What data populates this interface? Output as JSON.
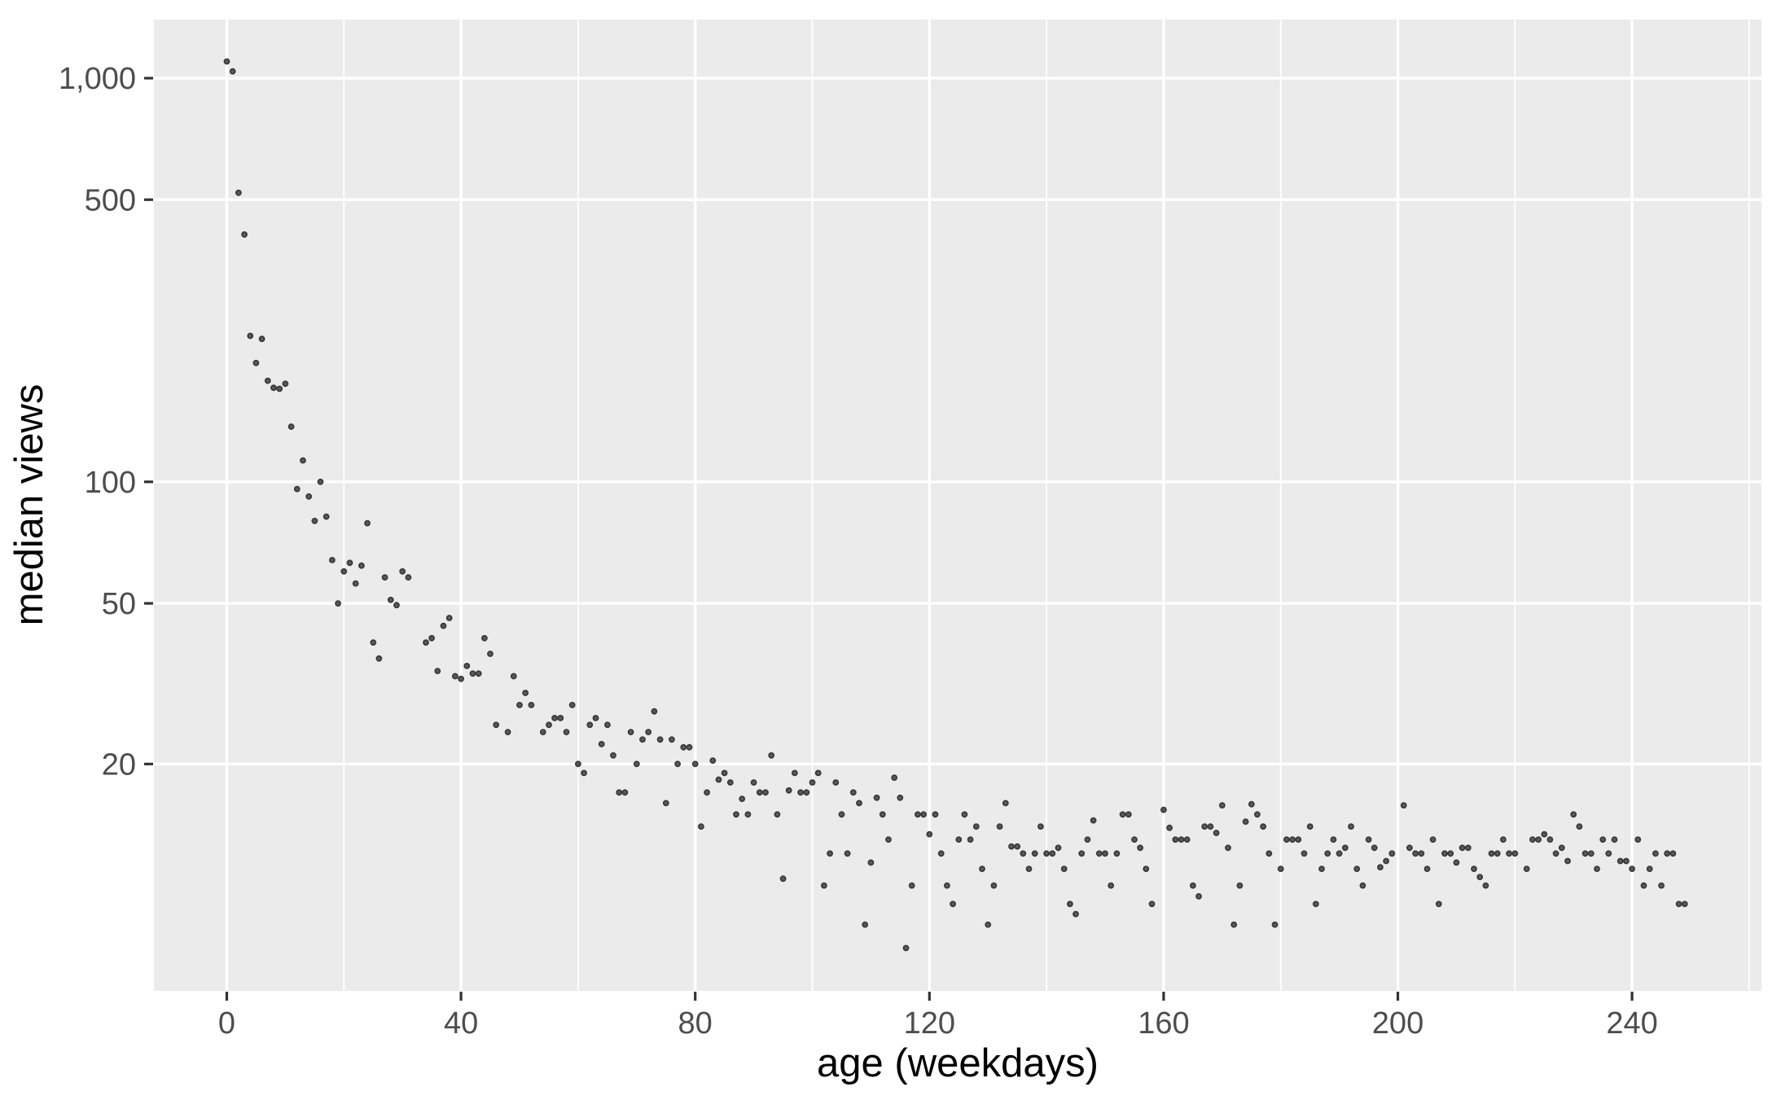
{
  "chart_data": {
    "type": "scatter",
    "title": "",
    "xlabel": "age (weekdays)",
    "ylabel": "median views",
    "x_axis": {
      "major_ticks": [
        0,
        40,
        80,
        120,
        160,
        200,
        240
      ],
      "major_tick_labels": [
        "0",
        "40",
        "80",
        "120",
        "160",
        "200",
        "240"
      ],
      "minor_ticks": [
        20,
        60,
        100,
        140,
        180,
        220,
        260
      ],
      "xlim": [
        -12.4,
        262
      ]
    },
    "y_axis": {
      "scale": "log10",
      "major_ticks": [
        20,
        50,
        100,
        500,
        1000
      ],
      "major_tick_labels": [
        "20",
        "50",
        "100",
        "500",
        "1,000"
      ],
      "ylim": [
        5.5,
        1400
      ]
    },
    "legend": "none",
    "grid": "major-and-minor-x, major-y, white on grey panel",
    "points": [
      [
        0,
        1100
      ],
      [
        1,
        1040
      ],
      [
        2,
        520
      ],
      [
        3,
        410
      ],
      [
        4,
        230
      ],
      [
        5,
        197
      ],
      [
        6,
        226
      ],
      [
        7,
        178
      ],
      [
        8,
        171
      ],
      [
        9,
        170
      ],
      [
        10,
        175
      ],
      [
        11,
        137
      ],
      [
        12,
        96
      ],
      [
        13,
        113
      ],
      [
        14,
        92
      ],
      [
        15,
        80
      ],
      [
        16,
        100
      ],
      [
        17,
        82
      ],
      [
        18,
        64
      ],
      [
        19,
        50
      ],
      [
        20,
        60
      ],
      [
        21,
        63
      ],
      [
        22,
        56
      ],
      [
        23,
        62
      ],
      [
        24,
        79
      ],
      [
        25,
        40
      ],
      [
        26,
        36.5
      ],
      [
        27,
        58
      ],
      [
        28,
        51
      ],
      [
        29,
        49.5
      ],
      [
        30,
        60
      ],
      [
        31,
        58
      ],
      [
        34,
        40
      ],
      [
        35,
        41
      ],
      [
        36,
        34
      ],
      [
        37,
        44
      ],
      [
        38,
        46
      ],
      [
        39,
        33
      ],
      [
        40,
        32.5
      ],
      [
        41,
        35
      ],
      [
        42,
        33.5
      ],
      [
        43,
        33.5
      ],
      [
        44,
        41
      ],
      [
        45,
        37.5
      ],
      [
        46,
        25
      ],
      [
        48,
        24
      ],
      [
        49,
        33
      ],
      [
        50,
        28
      ],
      [
        51,
        30
      ],
      [
        52,
        28
      ],
      [
        54,
        24
      ],
      [
        55,
        25
      ],
      [
        56,
        26
      ],
      [
        57,
        26
      ],
      [
        58,
        24
      ],
      [
        59,
        28
      ],
      [
        60,
        20
      ],
      [
        61,
        19
      ],
      [
        62,
        25
      ],
      [
        63,
        26
      ],
      [
        64,
        22.4
      ],
      [
        65,
        25
      ],
      [
        66,
        21
      ],
      [
        67,
        17
      ],
      [
        68,
        17
      ],
      [
        69,
        24
      ],
      [
        70,
        20
      ],
      [
        71,
        23
      ],
      [
        72,
        24
      ],
      [
        73,
        27
      ],
      [
        74,
        23
      ],
      [
        75,
        16
      ],
      [
        76,
        23
      ],
      [
        77,
        20
      ],
      [
        78,
        22
      ],
      [
        79,
        22
      ],
      [
        80,
        20
      ],
      [
        81,
        14
      ],
      [
        82,
        17
      ],
      [
        83,
        20.4
      ],
      [
        84,
        18.3
      ],
      [
        85,
        19
      ],
      [
        86,
        18
      ],
      [
        87,
        15
      ],
      [
        88,
        16.4
      ],
      [
        89,
        15
      ],
      [
        90,
        18
      ],
      [
        91,
        17
      ],
      [
        92,
        17
      ],
      [
        93,
        21
      ],
      [
        94,
        15
      ],
      [
        95,
        10.4
      ],
      [
        96,
        17.2
      ],
      [
        97,
        19
      ],
      [
        98,
        17
      ],
      [
        99,
        17
      ],
      [
        100,
        18
      ],
      [
        101,
        19
      ],
      [
        102,
        10
      ],
      [
        103,
        12
      ],
      [
        104,
        18
      ],
      [
        105,
        15
      ],
      [
        106,
        12
      ],
      [
        107,
        17
      ],
      [
        108,
        16
      ],
      [
        109,
        8
      ],
      [
        110,
        11.4
      ],
      [
        111,
        16.5
      ],
      [
        112,
        15
      ],
      [
        113,
        13
      ],
      [
        114,
        18.5
      ],
      [
        115,
        16.5
      ],
      [
        116,
        7
      ],
      [
        117,
        10
      ],
      [
        118,
        15
      ],
      [
        119,
        15
      ],
      [
        120,
        13.4
      ],
      [
        121,
        15
      ],
      [
        122,
        12
      ],
      [
        123,
        10
      ],
      [
        124,
        9
      ],
      [
        125,
        13
      ],
      [
        126,
        15
      ],
      [
        127,
        13
      ],
      [
        128,
        14
      ],
      [
        129,
        11
      ],
      [
        130,
        8
      ],
      [
        131,
        10
      ],
      [
        132,
        14
      ],
      [
        133,
        16
      ],
      [
        134,
        12.5
      ],
      [
        135,
        12.5
      ],
      [
        136,
        12
      ],
      [
        137,
        11
      ],
      [
        138,
        12
      ],
      [
        139,
        14
      ],
      [
        140,
        12
      ],
      [
        141,
        12
      ],
      [
        142,
        12.4
      ],
      [
        143,
        11
      ],
      [
        144,
        9
      ],
      [
        145,
        8.5
      ],
      [
        146,
        12
      ],
      [
        147,
        13
      ],
      [
        148,
        14.5
      ],
      [
        149,
        12
      ],
      [
        150,
        12
      ],
      [
        151,
        10
      ],
      [
        152,
        12
      ],
      [
        153,
        15
      ],
      [
        154,
        15
      ],
      [
        155,
        13
      ],
      [
        156,
        12.4
      ],
      [
        157,
        11
      ],
      [
        158,
        9
      ],
      [
        160,
        15.4
      ],
      [
        161,
        13.9
      ],
      [
        162,
        13
      ],
      [
        163,
        13
      ],
      [
        164,
        13
      ],
      [
        165,
        10
      ],
      [
        166,
        9.4
      ],
      [
        167,
        14
      ],
      [
        168,
        14
      ],
      [
        169,
        13.5
      ],
      [
        170,
        15.8
      ],
      [
        171,
        12.4
      ],
      [
        172,
        8
      ],
      [
        173,
        10
      ],
      [
        174,
        14.4
      ],
      [
        175,
        15.9
      ],
      [
        176,
        15
      ],
      [
        177,
        14
      ],
      [
        178,
        12
      ],
      [
        179,
        8
      ],
      [
        180,
        11
      ],
      [
        181,
        13
      ],
      [
        182,
        13
      ],
      [
        183,
        13
      ],
      [
        184,
        12
      ],
      [
        185,
        14
      ],
      [
        186,
        9
      ],
      [
        187,
        11
      ],
      [
        188,
        12
      ],
      [
        189,
        13
      ],
      [
        190,
        12
      ],
      [
        191,
        12.4
      ],
      [
        192,
        14
      ],
      [
        193,
        11
      ],
      [
        194,
        10
      ],
      [
        195,
        13
      ],
      [
        196,
        12.4
      ],
      [
        197,
        11.1
      ],
      [
        198,
        11.5
      ],
      [
        199,
        12
      ],
      [
        201,
        15.8
      ],
      [
        202,
        12.4
      ],
      [
        203,
        12
      ],
      [
        204,
        12
      ],
      [
        205,
        11
      ],
      [
        206,
        13
      ],
      [
        207,
        9
      ],
      [
        208,
        12
      ],
      [
        209,
        12
      ],
      [
        210,
        11.4
      ],
      [
        211,
        12.4
      ],
      [
        212,
        12.4
      ],
      [
        213,
        11
      ],
      [
        214,
        10.5
      ],
      [
        215,
        10
      ],
      [
        216,
        12
      ],
      [
        217,
        12
      ],
      [
        218,
        13
      ],
      [
        219,
        12
      ],
      [
        220,
        12
      ],
      [
        222,
        11
      ],
      [
        223,
        13
      ],
      [
        224,
        13
      ],
      [
        225,
        13.4
      ],
      [
        226,
        13
      ],
      [
        227,
        12
      ],
      [
        228,
        12.4
      ],
      [
        229,
        11.5
      ],
      [
        230,
        15
      ],
      [
        231,
        14
      ],
      [
        232,
        12
      ],
      [
        233,
        12
      ],
      [
        234,
        11
      ],
      [
        235,
        13
      ],
      [
        236,
        12
      ],
      [
        237,
        13
      ],
      [
        238,
        11.5
      ],
      [
        239,
        11.5
      ],
      [
        240,
        11
      ],
      [
        241,
        13
      ],
      [
        242,
        10
      ],
      [
        243,
        11
      ],
      [
        244,
        12
      ],
      [
        245,
        10
      ],
      [
        246,
        12
      ],
      [
        247,
        12
      ],
      [
        248,
        9
      ],
      [
        249,
        9
      ]
    ]
  },
  "colors": {
    "panel_bg": "#EBEBEB",
    "grid": "#FFFFFF",
    "point_fill": "#585858",
    "point_stroke": "#373737",
    "axis_text": "#4D4D4D",
    "axis_title": "#000000",
    "tick_mark": "#333333",
    "outer_bg": "#FFFFFF"
  }
}
